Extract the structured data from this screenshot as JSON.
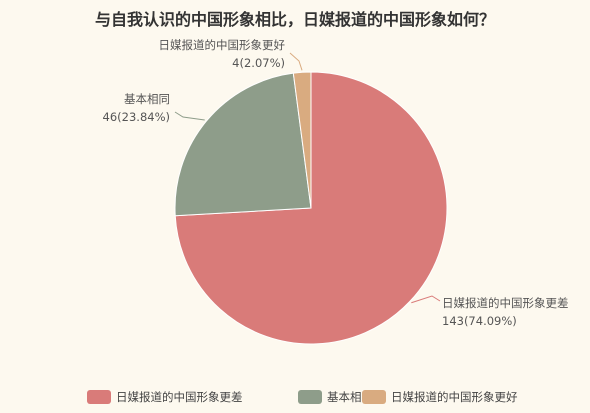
{
  "chart_data": {
    "type": "pie",
    "title": "与自我认识的中国形象相比，日媒报道的中国形象如何？",
    "slices": [
      {
        "name": "日媒报道的中国形象更差",
        "value": 143,
        "percent": "74.09%",
        "color": "#d97b79"
      },
      {
        "name": "基本相同",
        "value": 46,
        "percent": "23.84%",
        "color": "#8e9d8a"
      },
      {
        "name": "日媒报道的中国形象更好",
        "value": 4,
        "percent": "2.07%",
        "color": "#d9ab80"
      }
    ],
    "legend_position": "bottom"
  }
}
